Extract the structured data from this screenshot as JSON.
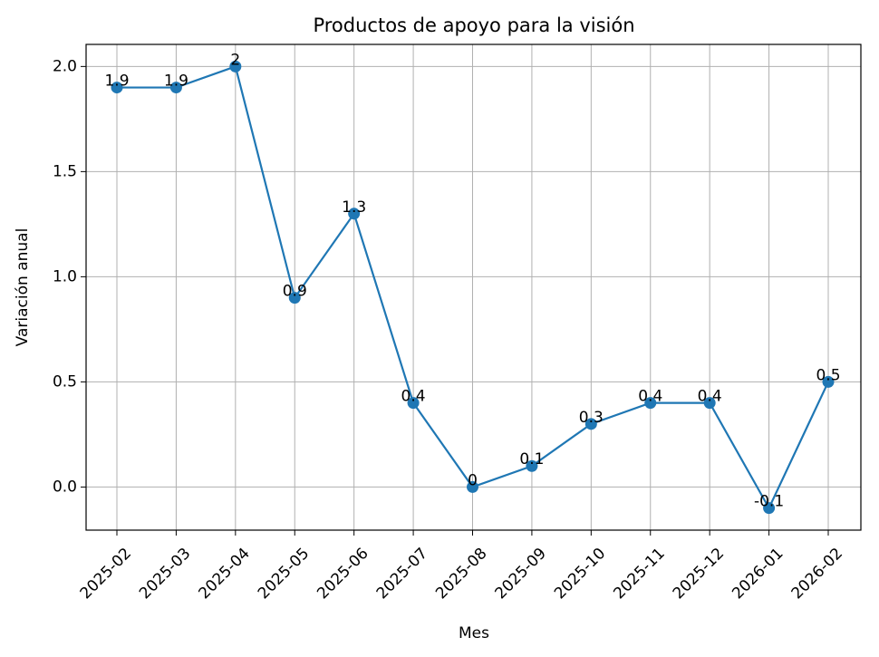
{
  "chart_data": {
    "type": "line",
    "title": "Productos de apoyo para la visión",
    "x_label": "Mes",
    "y_label": "Variación anual",
    "categories": [
      "2025-02",
      "2025-03",
      "2025-04",
      "2025-05",
      "2025-06",
      "2025-07",
      "2025-08",
      "2025-09",
      "2025-10",
      "2025-11",
      "2025-12",
      "2026-01",
      "2026-02"
    ],
    "values": [
      1.9,
      1.9,
      2,
      0.9,
      1.3,
      0.4,
      0,
      0.1,
      0.3,
      0.4,
      0.4,
      -0.1,
      0.5
    ],
    "color": "#1f77b4",
    "ylim": [
      -0.205,
      2.105
    ],
    "yticks": [
      {
        "value": 0,
        "label": "0.0"
      },
      0.5,
      {
        "value": 1,
        "label": "1.0"
      },
      1.5,
      {
        "value": 2,
        "label": "2.0"
      }
    ],
    "grid": true
  }
}
